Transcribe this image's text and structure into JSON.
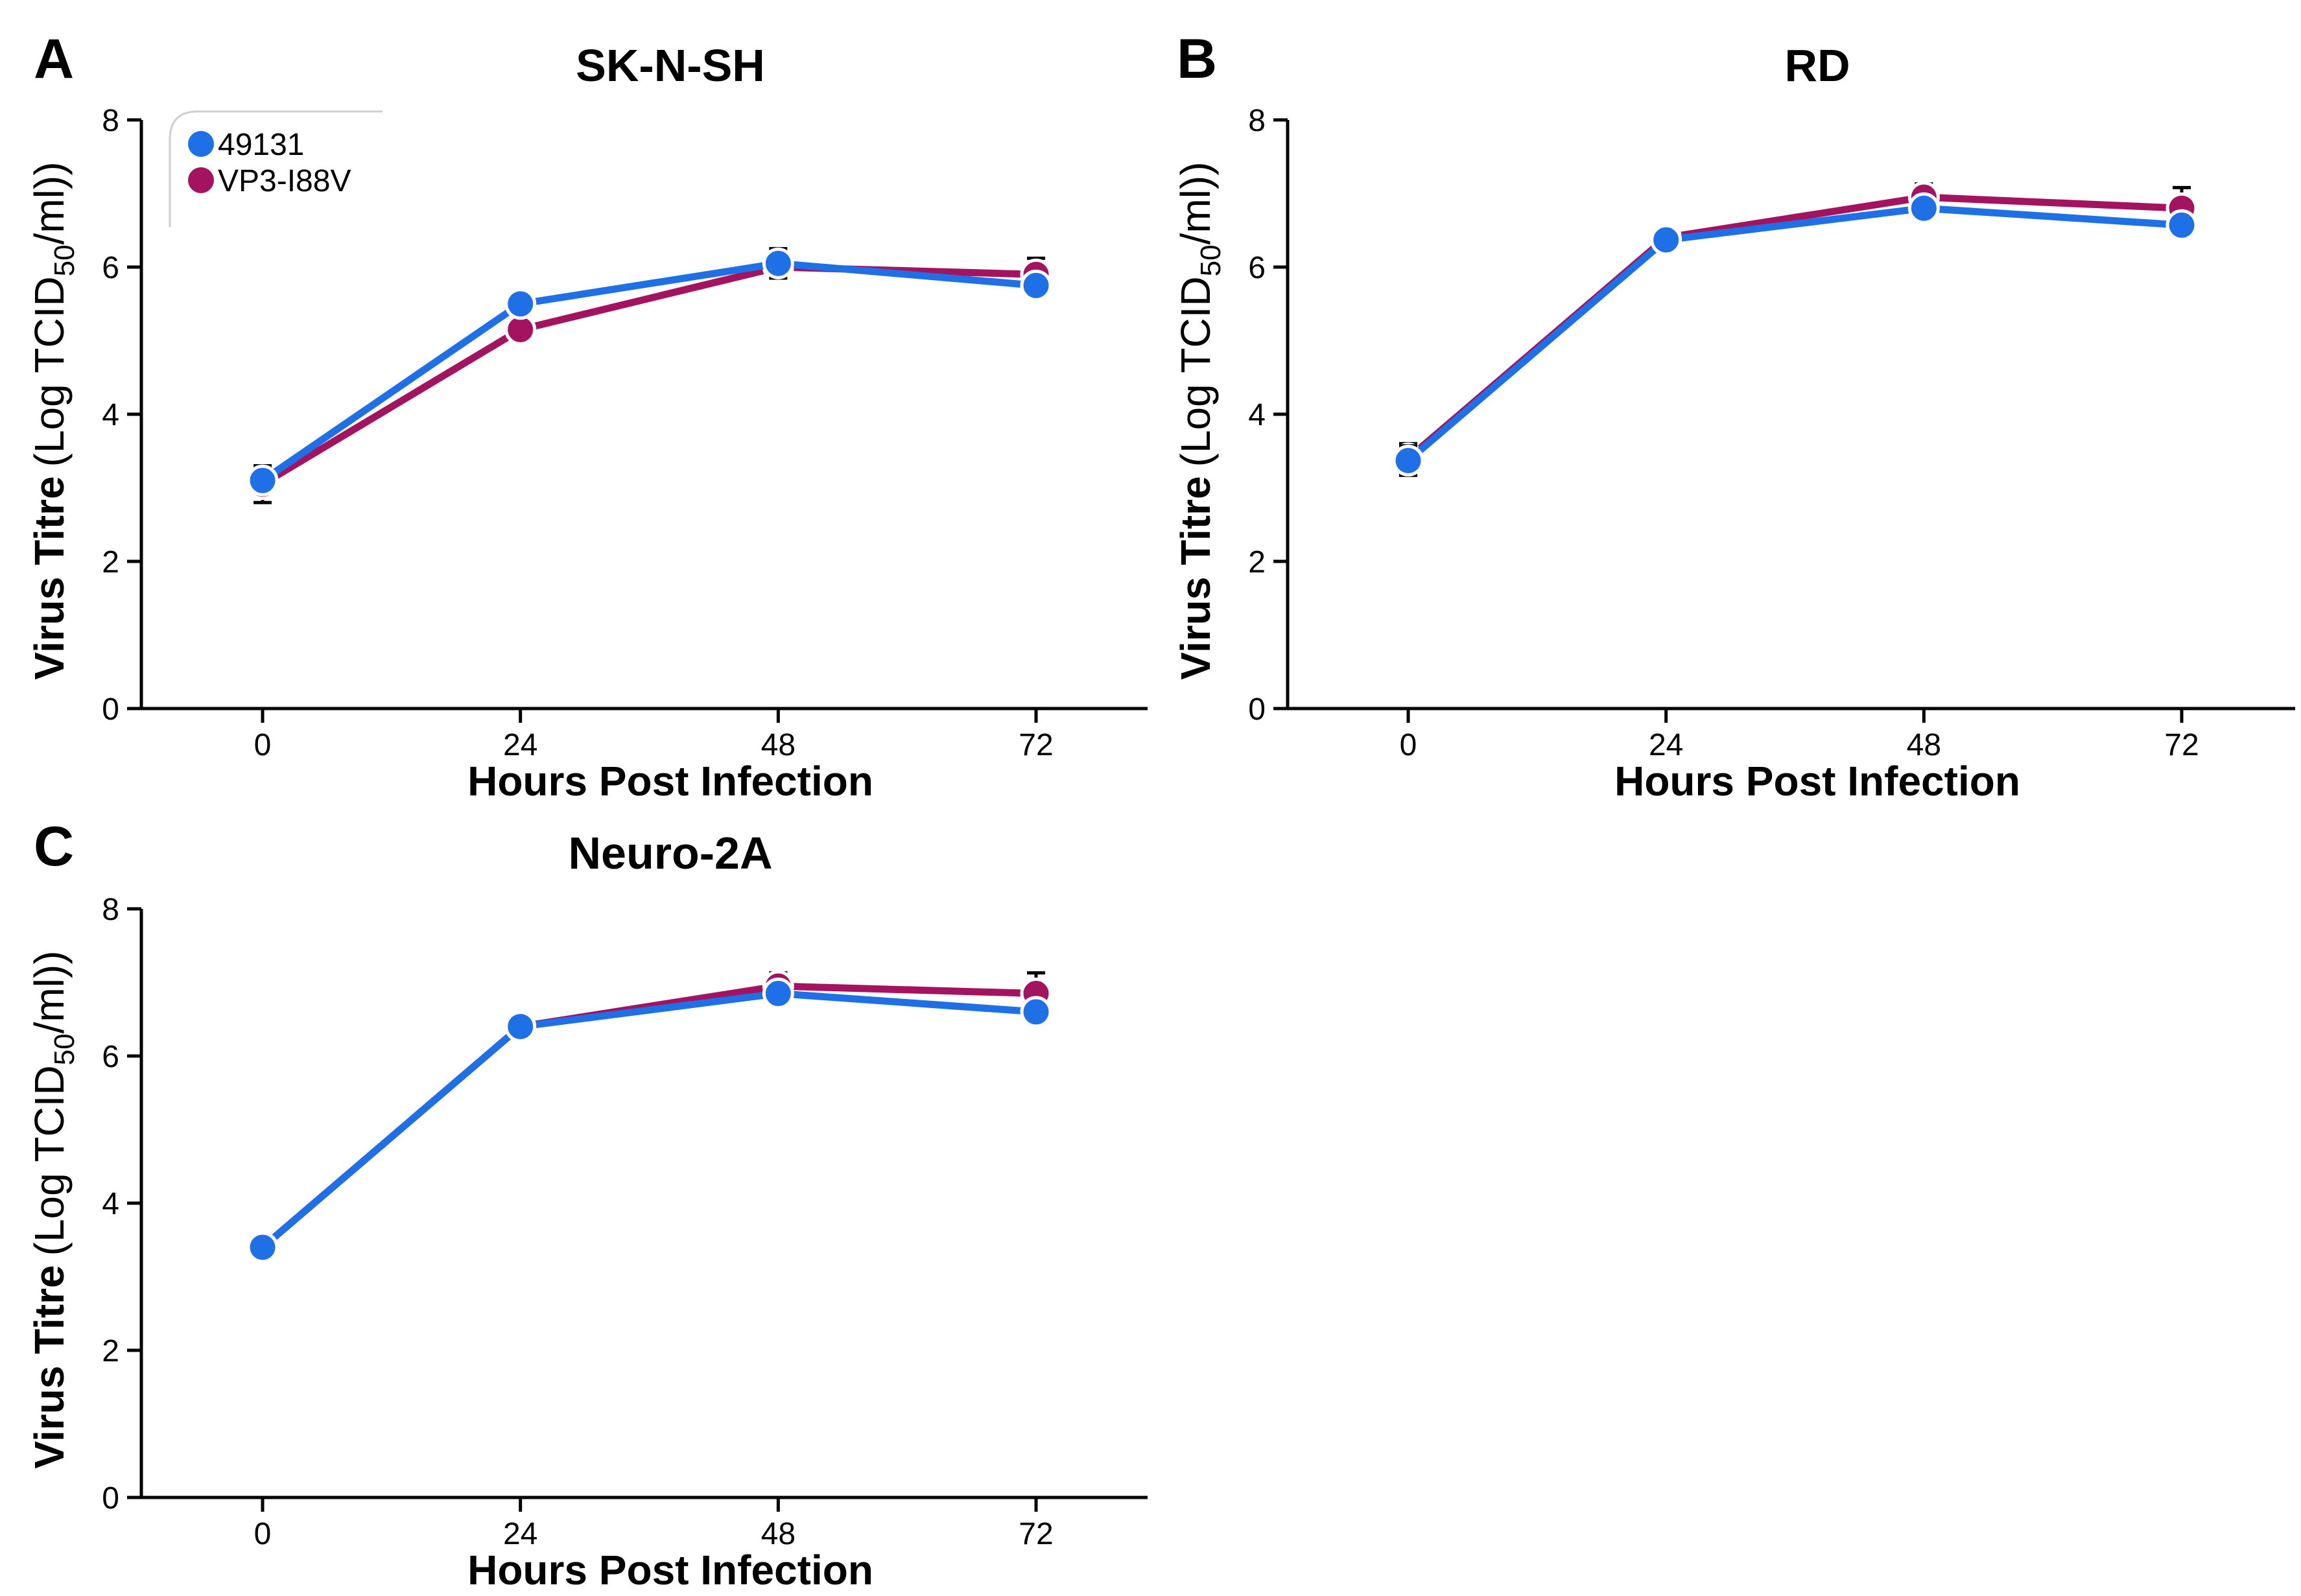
{
  "colors": {
    "s49131": "#1f6fe6",
    "vp3": "#a3135f",
    "axis": "#000000"
  },
  "chart_data": [
    {
      "type": "line",
      "panel": "A",
      "title": "SK-N-SH",
      "xlabel": "Hours Post Infection",
      "ylabel": {
        "bold": "Virus Titre",
        "unit_pre": "(Log TCID",
        "unit_sub": "50",
        "unit_post": "/ml))"
      },
      "x": [
        0,
        24,
        48,
        72
      ],
      "xticks": [
        "0",
        "24",
        "48",
        "72"
      ],
      "yticks": [
        "0",
        "2",
        "4",
        "6",
        "8"
      ],
      "ylim": [
        0,
        8
      ],
      "legend": [
        "49131",
        "VP3-I88V"
      ],
      "series": [
        {
          "name": "49131",
          "values": [
            3.1,
            5.5,
            6.05,
            5.75
          ],
          "err": [
            0.15,
            0.1,
            0.2,
            0.1
          ]
        },
        {
          "name": "VP3-I88V",
          "values": [
            3.05,
            5.15,
            6.0,
            5.9
          ],
          "err": [
            0.25,
            0.1,
            0.15,
            0.22
          ]
        }
      ]
    },
    {
      "type": "line",
      "panel": "B",
      "title": "RD",
      "xlabel": "Hours Post Infection",
      "ylabel": {
        "bold": "Virus Titre",
        "unit_pre": "(Log TCID",
        "unit_sub": "50",
        "unit_post": "/ml))"
      },
      "x": [
        0,
        24,
        48,
        72
      ],
      "xticks": [
        "0",
        "24",
        "48",
        "72"
      ],
      "yticks": [
        "0",
        "2",
        "4",
        "6",
        "8"
      ],
      "ylim": [
        0,
        8
      ],
      "legend": [],
      "series": [
        {
          "name": "49131",
          "values": [
            3.37,
            6.37,
            6.8,
            6.57
          ],
          "err": [
            0.2,
            0.05,
            0.1,
            0.1
          ]
        },
        {
          "name": "VP3-I88V",
          "values": [
            3.4,
            6.4,
            6.95,
            6.8
          ],
          "err": [
            0.2,
            0.05,
            0.18,
            0.28
          ]
        }
      ]
    },
    {
      "type": "line",
      "panel": "C",
      "title": "Neuro-2A",
      "xlabel": "Hours Post Infection",
      "ylabel": {
        "bold": "Virus Titre",
        "unit_pre": "(Log TCID",
        "unit_sub": "50",
        "unit_post": "/ml))"
      },
      "x": [
        0,
        24,
        48,
        72
      ],
      "xticks": [
        "0",
        "24",
        "48",
        "72"
      ],
      "yticks": [
        "0",
        "2",
        "4",
        "6",
        "8"
      ],
      "ylim": [
        0,
        8
      ],
      "legend": [],
      "series": [
        {
          "name": "49131",
          "values": [
            3.4,
            6.4,
            6.85,
            6.6
          ],
          "err": [
            0.15,
            0.05,
            0.1,
            0.15
          ]
        },
        {
          "name": "VP3-I88V",
          "values": [
            3.4,
            6.4,
            6.95,
            6.85
          ],
          "err": [
            0.15,
            0.05,
            0.18,
            0.28
          ]
        }
      ]
    }
  ]
}
